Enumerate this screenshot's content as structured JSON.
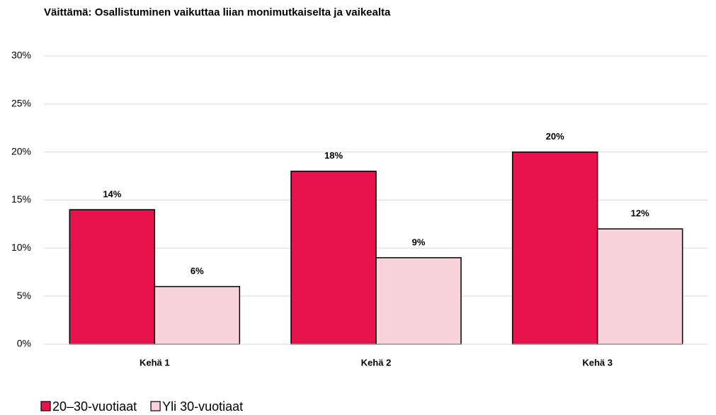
{
  "chart_data": {
    "type": "bar",
    "title": "Väittämä: Osallistuminen vaikuttaa liian monimutkaiselta ja vaikealta",
    "categories": [
      "Kehä 1",
      "Kehä 2",
      "Kehä 3"
    ],
    "series": [
      {
        "name": "20–30-vuotiaat",
        "color": "#e8124c",
        "values": [
          14,
          18,
          20
        ],
        "value_labels": [
          "14%",
          "18%",
          "20%"
        ]
      },
      {
        "name": "Yli 30-vuotiaat",
        "color": "#f9d3dc",
        "values": [
          6,
          9,
          12
        ],
        "value_labels": [
          "6%",
          "9%",
          "12%"
        ]
      }
    ],
    "ylim": [
      0,
      30
    ],
    "yticks": [
      {
        "value": 0,
        "label": "0%"
      },
      {
        "value": 5,
        "label": "5%"
      },
      {
        "value": 10,
        "label": "10%"
      },
      {
        "value": 15,
        "label": "15%"
      },
      {
        "value": 20,
        "label": "20%"
      },
      {
        "value": 25,
        "label": "25%"
      },
      {
        "value": 30,
        "label": "30%"
      }
    ],
    "grid": true,
    "legend": "bottom-left"
  }
}
